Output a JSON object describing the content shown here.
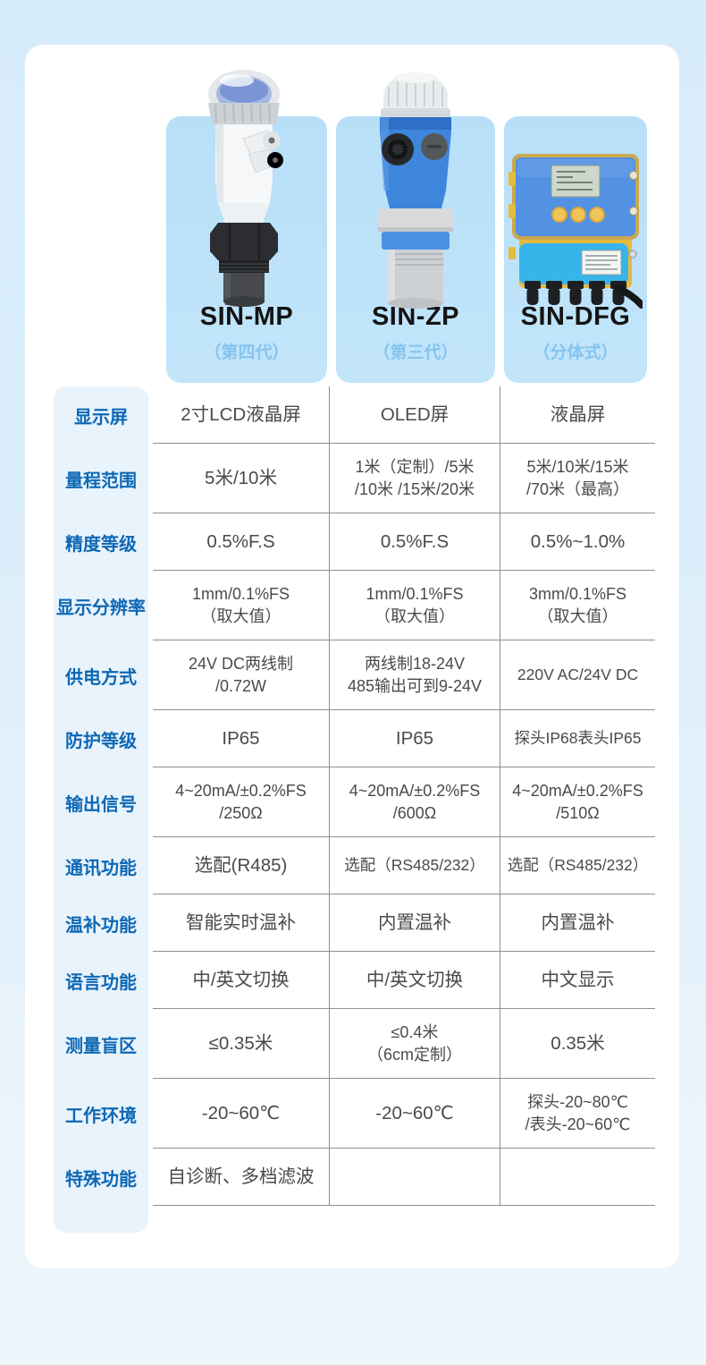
{
  "colors": {
    "page_bg_top": "#d7ecfb",
    "page_bg_bottom": "#eef6fc",
    "panel_white": "#ffffff",
    "product_card_blue": "#bce1f8",
    "product_subtitle_blue": "#85c4f0",
    "label_pill_bg": "#e9f3fb",
    "label_text_blue": "#0d68b5",
    "table_border_grey": "#8f8f8f",
    "value_text_grey": "#4a4a4a"
  },
  "products": [
    {
      "name": "SIN-MP",
      "subtitle": "（第四代）",
      "image": "ultrasonic-sensor-white"
    },
    {
      "name": "SIN-ZP",
      "subtitle": "（第三代）",
      "image": "ultrasonic-sensor-blue"
    },
    {
      "name": "SIN-DFG",
      "subtitle": "（分体式）",
      "image": "split-type-controller-box"
    }
  ],
  "table": {
    "rows": [
      {
        "label": "显示屏",
        "values": [
          "2寸LCD液晶屏",
          "OLED屏",
          "液晶屏"
        ]
      },
      {
        "label": "量程范围",
        "values": [
          "5米/10米",
          "1米（定制）/5米\n/10米 /15米/20米",
          "5米/10米/15米\n/70米（最高）"
        ]
      },
      {
        "label": "精度等级",
        "values": [
          "0.5%F.S",
          "0.5%F.S",
          "0.5%~1.0%"
        ]
      },
      {
        "label": "显示分辨率",
        "values": [
          "1mm/0.1%FS\n（取大值）",
          "1mm/0.1%FS\n（取大值）",
          "3mm/0.1%FS\n（取大值）"
        ]
      },
      {
        "label": "供电方式",
        "values": [
          "24V DC两线制\n/0.72W",
          "两线制18-24V\n485输出可到9-24V",
          "220V AC/24V DC"
        ]
      },
      {
        "label": "防护等级",
        "values": [
          "IP65",
          "IP65",
          "探头IP68表头IP65"
        ]
      },
      {
        "label": "输出信号",
        "values": [
          "4~20mA/±0.2%FS\n/250Ω",
          "4~20mA/±0.2%FS\n/600Ω",
          "4~20mA/±0.2%FS\n/510Ω"
        ]
      },
      {
        "label": "通讯功能",
        "values": [
          "选配(R485)",
          "选配（RS485/232）",
          "选配（RS485/232）"
        ]
      },
      {
        "label": "温补功能",
        "values": [
          "智能实时温补",
          "内置温补",
          "内置温补"
        ]
      },
      {
        "label": "语言功能",
        "values": [
          "中/英文切换",
          "中/英文切换",
          "中文显示"
        ]
      },
      {
        "label": "测量盲区",
        "values": [
          "≤0.35米",
          "≤0.4米\n（6cm定制）",
          "0.35米"
        ]
      },
      {
        "label": "工作环境",
        "values": [
          "-20~60℃",
          "-20~60℃",
          "探头-20~80℃\n/表头-20~60℃"
        ]
      },
      {
        "label": "特殊功能",
        "values": [
          "自诊断、多档滤波",
          "",
          ""
        ]
      }
    ]
  }
}
